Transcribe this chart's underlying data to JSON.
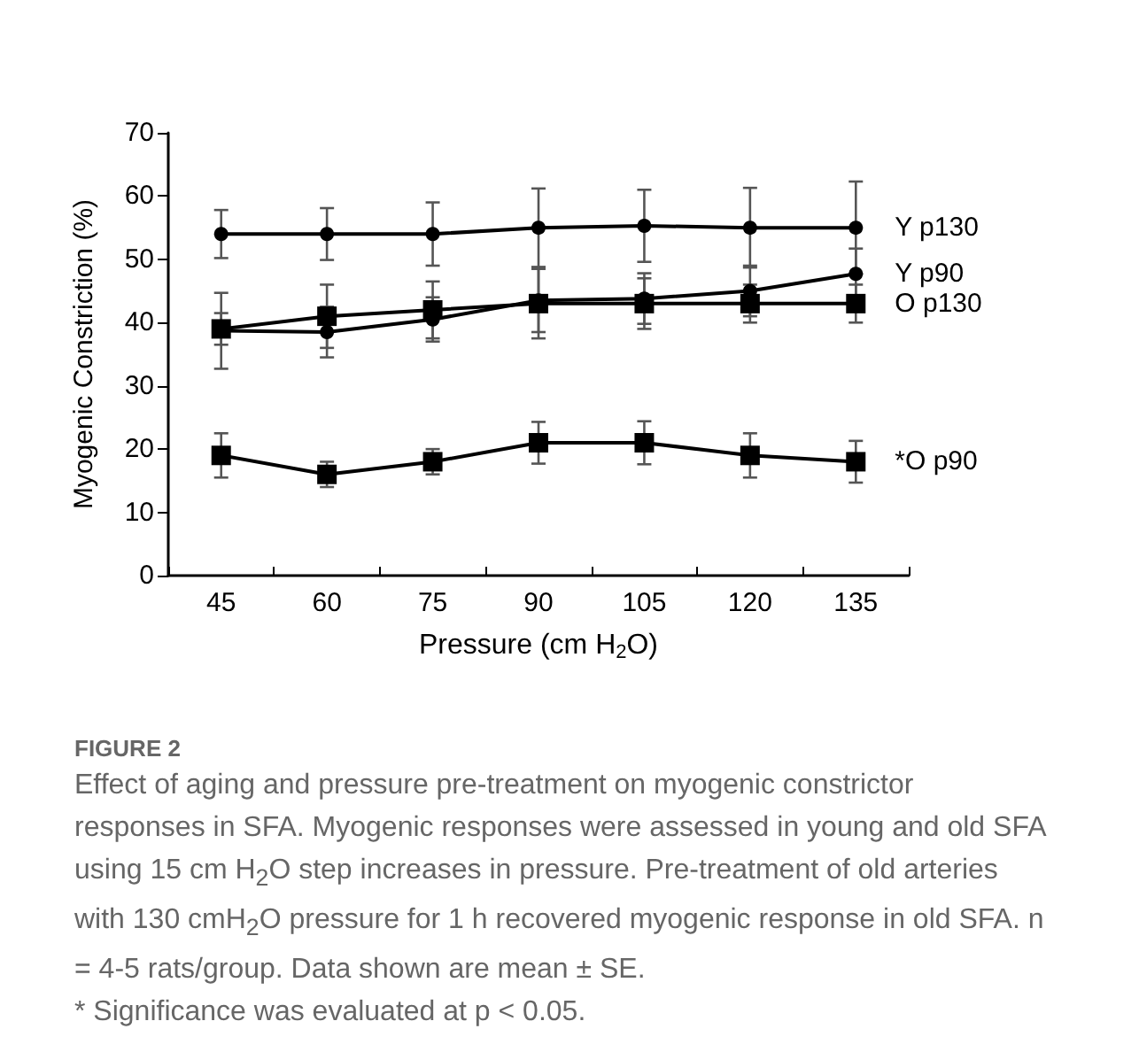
{
  "chart_data": {
    "type": "line",
    "xlabel": "Pressure (cm H$_{2}$O)",
    "ylabel": "Myogenic Constriction (%)",
    "categories": [
      "45",
      "60",
      "75",
      "90",
      "105",
      "120",
      "135"
    ],
    "ylim": [
      0,
      70
    ],
    "yticks": [
      0,
      10,
      20,
      30,
      40,
      50,
      60,
      70
    ],
    "grid": false,
    "legend": false,
    "line_style": "solid",
    "series": [
      {
        "name": "Y p130",
        "color": "#000000",
        "marker": "circle",
        "values": [
          54,
          54,
          54,
          55,
          55.3,
          55,
          55
        ],
        "errors": [
          3.8,
          4.1,
          5,
          6.2,
          5.7,
          6.3,
          7.3
        ]
      },
      {
        "name": "Y p90",
        "color": "#000000",
        "marker": "circle",
        "values": [
          38.7,
          38.5,
          40.5,
          43.5,
          43.8,
          45,
          47.7
        ],
        "errors": [
          6,
          4,
          3.5,
          5,
          4,
          4,
          4
        ]
      },
      {
        "name": "O p130",
        "color": "#000000",
        "marker": "square",
        "values": [
          39,
          41,
          42,
          43,
          43,
          43,
          43
        ],
        "errors": [
          2.5,
          5,
          4.5,
          5.5,
          4,
          3,
          3
        ]
      },
      {
        "name": "*O p90",
        "color": "#000000",
        "marker": "square",
        "values": [
          19,
          16,
          18,
          21,
          21,
          19,
          18
        ],
        "errors": [
          3.5,
          2,
          2,
          3.3,
          3.4,
          3.5,
          3.3
        ]
      }
    ],
    "annotations": [
      "FIGURE 2",
      "Effect of aging and pressure pre-treatment on myogenic constrictor responses in SFA. Myogenic responses were assessed in young and old SFA using 15 cm H$_{2}$O step increases in pressure. Pre-treatment of old arteries with 130 cmH$_{2}$O pressure for 1 h recovered myogenic response in old SFA. n = 4-5 rats/group. Data shown are mean ± SE.",
      "* Significance was evaluated at p < 0.05."
    ]
  }
}
